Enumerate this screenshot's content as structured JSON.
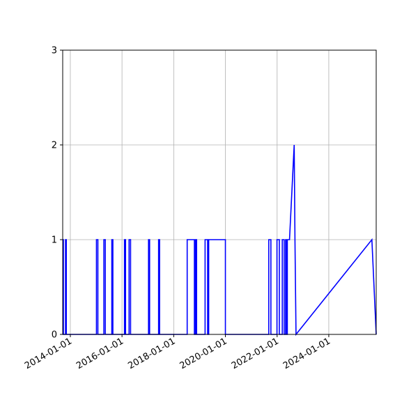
{
  "chart_data": {
    "type": "line",
    "title": "",
    "xlabel": "",
    "ylabel": "",
    "xlim": [
      "2013-09-15",
      "2025-11-01"
    ],
    "ylim": [
      0,
      3
    ],
    "grid": true,
    "line_color": "#0000ff",
    "x_tick_labels": [
      "2014-01-01",
      "2016-01-01",
      "2018-01-01",
      "2020-01-01",
      "2022-01-01",
      "2024-01-01"
    ],
    "y_tick_labels": [
      "0",
      "1",
      "2",
      "3"
    ],
    "series": [
      {
        "x": [
          "2013-09-15",
          "2013-09-20",
          "2013-09-20",
          "2013-09-25",
          "2013-09-25",
          "2013-10-25",
          "2013-10-25",
          "2013-11-05",
          "2013-11-05",
          "2015-01-05",
          "2015-01-05",
          "2015-01-25",
          "2015-01-25",
          "2015-04-20",
          "2015-04-20",
          "2015-05-10",
          "2015-05-10",
          "2015-08-10",
          "2015-08-10",
          "2015-08-25",
          "2015-08-25",
          "2016-02-05",
          "2016-02-05",
          "2016-02-20",
          "2016-02-20",
          "2016-04-10",
          "2016-04-10",
          "2016-05-01",
          "2016-05-01",
          "2017-01-10",
          "2017-01-10",
          "2017-01-25",
          "2017-01-25",
          "2017-06-01",
          "2017-06-01",
          "2017-06-15",
          "2017-06-15",
          "2018-07-10",
          "2018-07-10",
          "2018-10-20",
          "2018-10-20",
          "2018-11-05",
          "2018-11-05",
          "2018-11-20",
          "2018-11-20",
          "2019-03-20",
          "2019-03-20",
          "2019-04-25",
          "2019-04-25",
          "2019-05-10",
          "2019-05-10",
          "2020-01-01",
          "2020-01-01",
          "2021-09-05",
          "2021-09-05",
          "2021-10-05",
          "2021-10-05",
          "2021-12-30",
          "2021-12-30",
          "2022-02-01",
          "2022-02-01",
          "2022-03-15",
          "2022-03-15",
          "2022-04-10",
          "2022-04-10",
          "2022-05-01",
          "2022-05-01",
          "2022-05-15",
          "2022-05-15",
          "2022-05-25",
          "2022-05-25",
          "2022-06-25",
          "2022-08-30",
          "2022-09-10",
          "2022-09-10",
          "2022-09-25",
          "2022-09-25",
          "2025-09-01",
          "2025-09-01",
          "2025-11-01"
        ],
        "y": [
          0,
          0,
          1,
          1,
          0,
          0,
          1,
          1,
          0,
          0,
          1,
          1,
          0,
          0,
          1,
          1,
          0,
          0,
          1,
          1,
          0,
          0,
          1,
          1,
          0,
          0,
          1,
          1,
          0,
          0,
          1,
          1,
          0,
          0,
          1,
          1,
          0,
          0,
          1,
          1,
          0,
          0,
          1,
          1,
          0,
          0,
          1,
          1,
          0,
          0,
          1,
          1,
          0,
          0,
          1,
          1,
          0,
          0,
          1,
          1,
          0,
          0,
          1,
          1,
          0,
          0,
          1,
          1,
          0,
          0,
          1,
          1,
          2,
          1,
          1,
          0,
          0,
          1,
          1,
          0
        ]
      }
    ]
  }
}
